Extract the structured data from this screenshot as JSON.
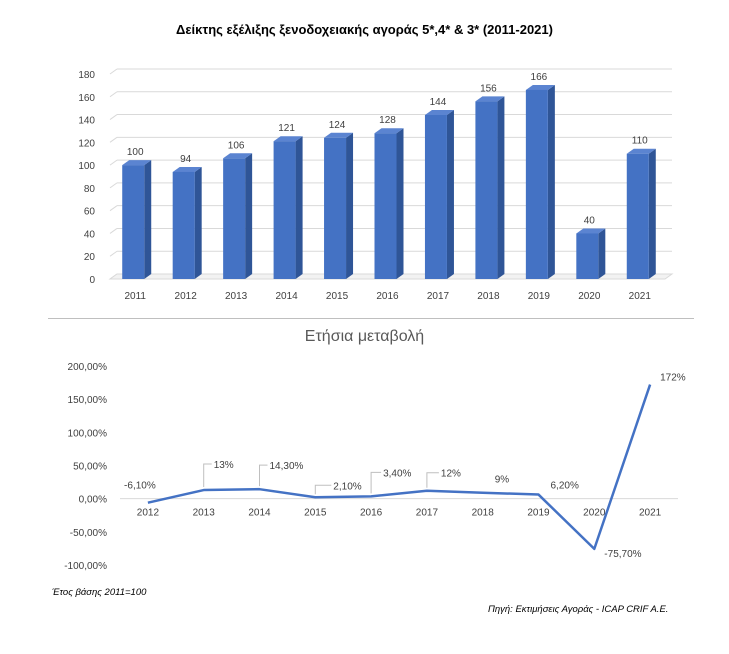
{
  "chart_data": [
    {
      "type": "bar",
      "title": "Δείκτης εξέλιξης ξενοδοχειακής αγοράς 5*,4* & 3* (2011-2021)",
      "categories": [
        "2011",
        "2012",
        "2013",
        "2014",
        "2015",
        "2016",
        "2017",
        "2018",
        "2019",
        "2020",
        "2021"
      ],
      "values": [
        100,
        94,
        106,
        121,
        124,
        128,
        144,
        156,
        166,
        40,
        110
      ],
      "data_labels": [
        "100",
        "94",
        "106",
        "121",
        "124",
        "128",
        "144",
        "156",
        "166",
        "40",
        "110"
      ],
      "y_ticks": [
        "0",
        "20",
        "40",
        "60",
        "80",
        "100",
        "120",
        "140",
        "160",
        "180"
      ],
      "ylim": [
        0,
        180
      ],
      "grid": true,
      "bar_color": "#4472c4",
      "xlabel": "",
      "ylabel": ""
    },
    {
      "type": "line",
      "title": "Ετήσια μεταβολή",
      "categories": [
        "2012",
        "2013",
        "2014",
        "2015",
        "2016",
        "2017",
        "2018",
        "2019",
        "2020",
        "2021"
      ],
      "values": [
        -6.1,
        13,
        14.3,
        2.1,
        3.4,
        12,
        9,
        6.2,
        -75.7,
        172
      ],
      "data_labels": [
        "-6,10%",
        "13%",
        "14,30%",
        "2,10%",
        "3,40%",
        "12%",
        "9%",
        "6,20%",
        "-75,70%",
        "172%"
      ],
      "y_ticks": [
        "-100,00%",
        "-50,00%",
        "0,00%",
        "50,00%",
        "100,00%",
        "150,00%",
        "200,00%"
      ],
      "ylim": [
        -100,
        200
      ],
      "grid": false,
      "line_color": "#4472c4",
      "xlabel": "",
      "ylabel": ""
    }
  ],
  "notes": {
    "base": "Έτος βάσης 2011=100",
    "source": "Πηγή: Εκτιμήσεις Αγοράς - ICAP CRIF A.E."
  }
}
